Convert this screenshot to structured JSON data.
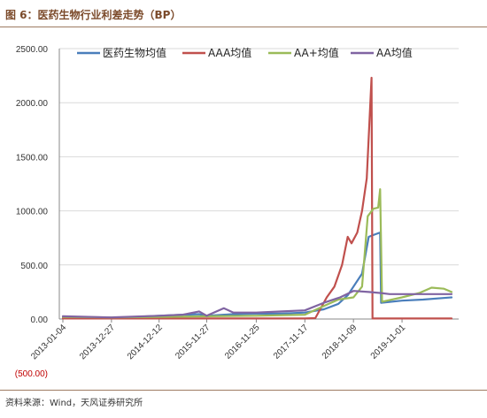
{
  "header": {
    "title": "图 6：医药生物行业利差走势（BP）"
  },
  "footer": {
    "source": "资料来源：Wind，天风证券研究所"
  },
  "chart_data": {
    "type": "line",
    "title": "",
    "xlabel": "",
    "ylabel": "",
    "ylim": [
      -500,
      2500
    ],
    "y_ticks": [
      2500,
      2000,
      1500,
      1000,
      500,
      0,
      -500
    ],
    "y_tick_labels": [
      "2500.00",
      "2000.00",
      "1500.00",
      "1000.00",
      "500.00",
      "0.00",
      "(500.00)"
    ],
    "x_tick_labels": [
      "2013-01-04",
      "2013-12-27",
      "2014-12-12",
      "2015-11-27",
      "2016-11-25",
      "2017-11-17",
      "2018-11-09",
      "2019-11-01"
    ],
    "x_range": [
      "2013-01-04",
      "2020-10-30"
    ],
    "grid": "horizontal",
    "legend_position": "top",
    "series": [
      {
        "name": "医药生物均值",
        "color": "#4a7ebb",
        "points": [
          [
            "2013-01-04",
            15
          ],
          [
            "2013-06-28",
            12
          ],
          [
            "2013-12-27",
            10
          ],
          [
            "2014-06-20",
            20
          ],
          [
            "2014-12-12",
            30
          ],
          [
            "2015-06-05",
            40
          ],
          [
            "2015-10-02",
            45
          ],
          [
            "2015-11-27",
            30
          ],
          [
            "2016-06-10",
            45
          ],
          [
            "2016-11-25",
            50
          ],
          [
            "2017-06-02",
            50
          ],
          [
            "2017-11-17",
            60
          ],
          [
            "2018-04-06",
            90
          ],
          [
            "2018-07-20",
            140
          ],
          [
            "2018-09-28",
            220
          ],
          [
            "2018-11-09",
            300
          ],
          [
            "2019-01-11",
            420
          ],
          [
            "2019-03-01",
            760
          ],
          [
            "2019-04-12",
            780
          ],
          [
            "2019-05-24",
            800
          ],
          [
            "2019-05-31",
            150
          ],
          [
            "2019-11-01",
            170
          ],
          [
            "2020-04-03",
            180
          ],
          [
            "2020-10-30",
            200
          ]
        ]
      },
      {
        "name": "AAA均值",
        "color": "#c0504d",
        "points": [
          [
            "2013-01-04",
            5
          ],
          [
            "2013-12-27",
            5
          ],
          [
            "2014-12-12",
            5
          ],
          [
            "2015-11-27",
            5
          ],
          [
            "2016-11-25",
            5
          ],
          [
            "2017-11-17",
            5
          ],
          [
            "2018-02-02",
            8
          ],
          [
            "2018-04-27",
            200
          ],
          [
            "2018-06-22",
            300
          ],
          [
            "2018-08-17",
            500
          ],
          [
            "2018-09-28",
            760
          ],
          [
            "2018-10-26",
            700
          ],
          [
            "2018-12-07",
            800
          ],
          [
            "2019-01-11",
            1000
          ],
          [
            "2019-02-15",
            1300
          ],
          [
            "2019-03-22",
            2230
          ],
          [
            "2019-03-29",
            5
          ],
          [
            "2019-11-01",
            5
          ],
          [
            "2020-10-30",
            5
          ]
        ]
      },
      {
        "name": "AA+均值",
        "color": "#9bbb59",
        "points": [
          [
            "2013-01-04",
            20
          ],
          [
            "2013-12-27",
            15
          ],
          [
            "2014-12-12",
            20
          ],
          [
            "2015-11-27",
            25
          ],
          [
            "2016-11-25",
            30
          ],
          [
            "2017-11-17",
            40
          ],
          [
            "2018-04-06",
            120
          ],
          [
            "2018-07-20",
            180
          ],
          [
            "2018-11-09",
            200
          ],
          [
            "2019-01-11",
            300
          ],
          [
            "2019-02-22",
            950
          ],
          [
            "2019-04-05",
            1020
          ],
          [
            "2019-05-10",
            1030
          ],
          [
            "2019-05-24",
            1200
          ],
          [
            "2019-06-07",
            160
          ],
          [
            "2019-11-01",
            200
          ],
          [
            "2020-03-06",
            240
          ],
          [
            "2020-06-05",
            290
          ],
          [
            "2020-09-04",
            280
          ],
          [
            "2020-10-30",
            250
          ]
        ]
      },
      {
        "name": "AA均值",
        "color": "#8064a2",
        "points": [
          [
            "2013-01-04",
            25
          ],
          [
            "2013-12-27",
            15
          ],
          [
            "2014-12-12",
            30
          ],
          [
            "2015-06-05",
            40
          ],
          [
            "2015-10-02",
            70
          ],
          [
            "2015-11-27",
            30
          ],
          [
            "2016-04-01",
            100
          ],
          [
            "2016-06-10",
            60
          ],
          [
            "2016-11-25",
            60
          ],
          [
            "2017-06-02",
            70
          ],
          [
            "2017-11-17",
            80
          ],
          [
            "2018-04-06",
            150
          ],
          [
            "2018-08-03",
            200
          ],
          [
            "2018-11-09",
            260
          ],
          [
            "2019-03-01",
            250
          ],
          [
            "2019-05-31",
            240
          ],
          [
            "2019-08-02",
            230
          ],
          [
            "2019-11-01",
            230
          ],
          [
            "2020-10-30",
            230
          ]
        ]
      }
    ]
  }
}
